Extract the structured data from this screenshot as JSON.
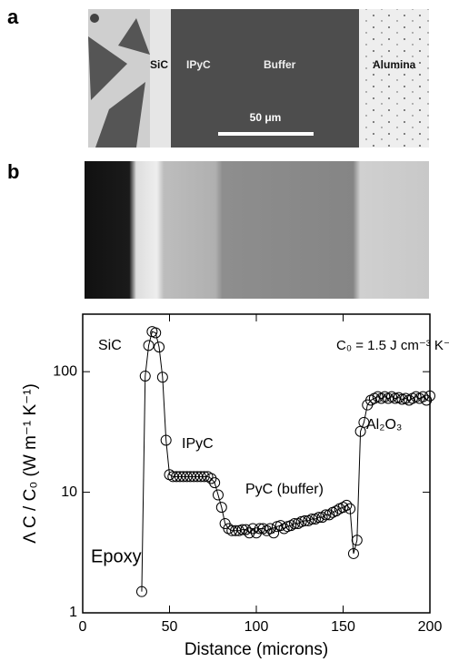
{
  "panels": {
    "a": "a",
    "b": "b"
  },
  "image_a": {
    "labels": [
      "SiC",
      "IPyC",
      "Buffer",
      "Alumina"
    ],
    "scale_bar": "50 μm"
  },
  "chart_data": {
    "type": "line",
    "x": [
      34,
      36,
      38,
      40,
      42,
      44,
      46,
      48,
      50,
      52,
      54,
      56,
      58,
      60,
      62,
      64,
      66,
      68,
      70,
      72,
      74,
      76,
      78,
      80,
      82,
      84,
      86,
      88,
      90,
      92,
      94,
      96,
      98,
      100,
      102,
      104,
      106,
      108,
      110,
      112,
      114,
      116,
      118,
      120,
      122,
      124,
      126,
      128,
      130,
      132,
      134,
      136,
      138,
      140,
      142,
      144,
      146,
      148,
      150,
      152,
      154,
      156,
      158,
      160,
      162,
      164,
      166,
      168,
      170,
      172,
      174,
      176,
      178,
      180,
      182,
      184,
      186,
      188,
      190,
      192,
      194,
      196,
      198,
      200
    ],
    "series": [
      {
        "color": "#000000",
        "values": [
          1.5,
          92,
          165,
          215,
          210,
          160,
          90,
          27,
          14,
          13.5,
          13.5,
          13.5,
          13.5,
          13.5,
          13.5,
          13.5,
          13.5,
          13.5,
          13.5,
          13.5,
          13,
          12,
          9.5,
          7.5,
          5.5,
          5,
          4.8,
          4.8,
          4.8,
          4.9,
          4.9,
          4.6,
          5,
          4.6,
          5,
          5,
          4.8,
          5,
          4.6,
          5.2,
          5.3,
          5,
          5.2,
          5.3,
          5.5,
          5.5,
          5.7,
          5.8,
          5.8,
          6,
          6,
          6.2,
          6.2,
          6.5,
          6.5,
          6.8,
          7,
          7.3,
          7.5,
          7.8,
          7.3,
          3.1,
          4,
          32,
          38,
          53,
          58,
          60,
          62,
          60,
          62,
          60,
          62,
          60,
          61,
          59,
          60,
          58,
          60,
          62,
          60,
          62,
          58,
          63
        ]
      }
    ],
    "xlim": [
      0,
      200
    ],
    "xticks": [
      0,
      50,
      100,
      150,
      200
    ],
    "ylim": [
      1,
      300
    ],
    "yticks": [
      1,
      10,
      100
    ],
    "ylog": true,
    "xlabel": "Distance (microns)",
    "ylabel": "Λ C / C₀ (W m⁻¹ K⁻¹)",
    "annotations": [
      "SiC",
      "C₀ = 1.5 J cm⁻³ K⁻¹",
      "IPyC",
      "PyC (buffer)",
      "Al₂O₃",
      "Epoxy"
    ]
  }
}
